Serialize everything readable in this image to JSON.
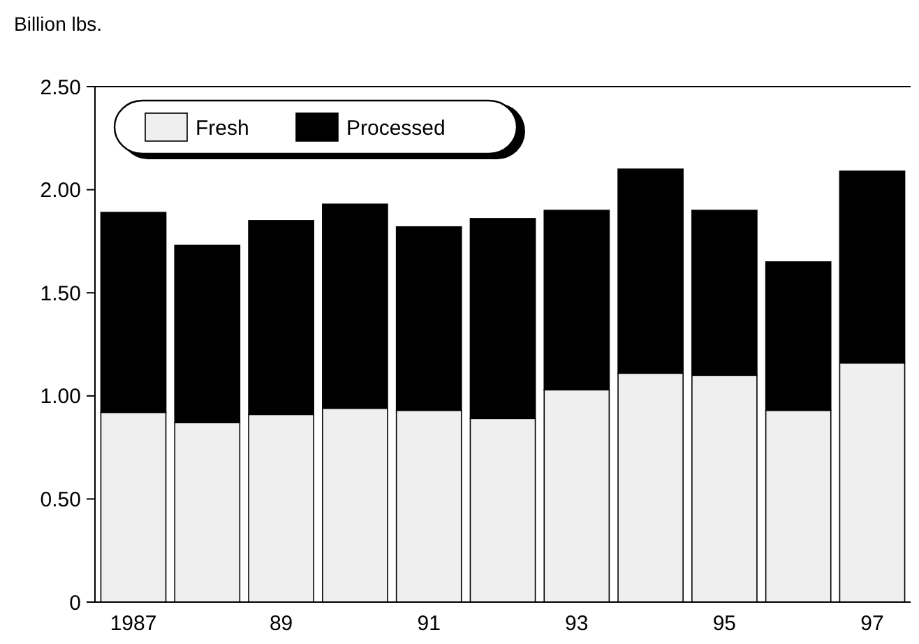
{
  "chart_data": {
    "type": "bar",
    "stacked": true,
    "ylabel": "Billion lbs.",
    "categories": [
      "1987",
      null,
      "89",
      null,
      "91",
      null,
      "93",
      null,
      "95",
      null,
      "97"
    ],
    "series": [
      {
        "name": "Fresh",
        "color": "#efefef",
        "values": [
          0.92,
          0.87,
          0.91,
          0.94,
          0.93,
          0.89,
          1.03,
          1.11,
          1.1,
          0.93,
          1.16
        ]
      },
      {
        "name": "Processed",
        "color": "#000000",
        "values": [
          0.97,
          0.86,
          0.94,
          0.99,
          0.89,
          0.97,
          0.87,
          0.99,
          0.8,
          0.72,
          0.93
        ]
      }
    ],
    "ylim": [
      0,
      2.5
    ],
    "yticks": [
      {
        "value": 0,
        "label": "0"
      },
      {
        "value": 0.5,
        "label": "0.50"
      },
      {
        "value": 1,
        "label": "1.00"
      },
      {
        "value": 1.5,
        "label": "1.50"
      },
      {
        "value": 2,
        "label": "2.00"
      },
      {
        "value": 2.5,
        "label": "2.50"
      }
    ],
    "grid": false,
    "legend": "top left"
  }
}
